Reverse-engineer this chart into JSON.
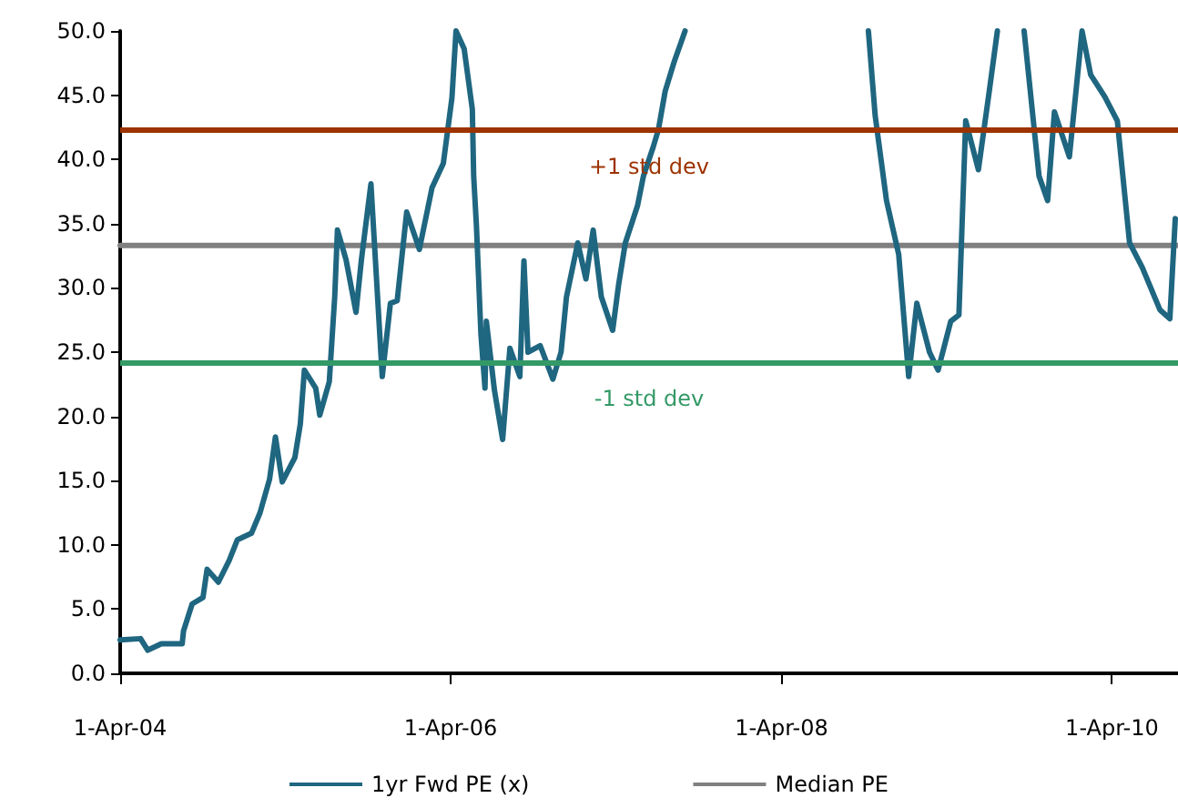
{
  "chart_data": {
    "type": "line",
    "series": [
      {
        "name": "1yr Fwd PE (x)",
        "color": "#1f6680",
        "x": [
          "2004-04-01",
          "2004-05-16",
          "2004-06-01",
          "2004-07-01",
          "2004-08-16",
          "2004-08-19",
          "2004-09-07",
          "2004-10-01",
          "2004-10-10",
          "2004-11-04",
          "2004-11-28",
          "2004-12-16",
          "2005-01-16",
          "2005-02-04",
          "2005-02-25",
          "2005-03-10",
          "2005-03-25",
          "2005-04-22",
          "2005-05-04",
          "2005-05-13",
          "2005-06-07",
          "2005-06-16",
          "2005-07-07",
          "2005-07-13",
          "2005-07-19",
          "2005-07-25",
          "2005-08-13",
          "2005-09-04",
          "2005-09-16",
          "2005-10-07",
          "2005-11-01",
          "2005-11-19",
          "2005-12-04",
          "2005-12-25",
          "2006-01-22",
          "2006-02-19",
          "2006-03-16",
          "2006-04-04",
          "2006-04-13",
          "2006-05-01",
          "2006-05-19",
          "2006-05-22",
          "2006-05-28",
          "2006-06-07",
          "2006-06-16",
          "2006-06-19",
          "2006-07-07",
          "2006-07-25",
          "2006-08-10",
          "2006-09-01",
          "2006-09-10",
          "2006-09-19",
          "2006-10-16",
          "2006-11-13",
          "2006-12-01",
          "2006-12-13",
          "2007-01-07",
          "2007-01-25",
          "2007-02-10",
          "2007-02-28",
          "2007-03-25",
          "2007-04-07",
          "2007-04-22",
          "2007-05-19",
          "2007-06-01",
          "2007-06-22",
          "2007-07-04",
          "2007-07-19",
          "2007-08-07",
          "2007-08-28",
          "2007-09-01",
          "2008-01-01",
          "2008-10-10",
          "2008-10-25",
          "2008-11-19",
          "2008-12-16",
          "2009-01-07",
          "2009-01-25",
          "2009-02-22",
          "2009-03-13",
          "2009-04-10",
          "2009-04-28",
          "2009-05-13",
          "2009-06-10",
          "2009-07-04",
          "2009-07-22",
          "2009-08-01",
          "2009-09-19",
          "2009-10-22",
          "2009-11-10",
          "2009-11-25",
          "2009-12-28",
          "2010-01-25",
          "2010-02-13",
          "2010-03-16",
          "2010-04-13",
          "2010-05-10",
          "2010-06-07",
          "2010-07-16",
          "2010-08-07",
          "2010-08-19"
        ],
        "values": [
          2.6,
          2.7,
          1.8,
          2.3,
          2.3,
          3.3,
          5.4,
          5.9,
          8.1,
          7.1,
          8.8,
          10.4,
          10.9,
          12.5,
          15.1,
          18.4,
          14.9,
          16.8,
          19.4,
          23.6,
          22.2,
          20.1,
          22.7,
          26.0,
          29.3,
          34.5,
          32.2,
          28.1,
          32.2,
          38.1,
          23.1,
          28.8,
          29.0,
          35.9,
          33.0,
          37.8,
          39.7,
          44.8,
          50.0,
          48.6,
          43.9,
          38.7,
          34.9,
          26.4,
          22.2,
          27.4,
          22.0,
          18.2,
          25.3,
          23.1,
          32.1,
          25.0,
          25.5,
          22.9,
          25.0,
          29.3,
          33.5,
          30.7,
          34.5,
          29.3,
          26.7,
          30.2,
          33.5,
          36.4,
          38.7,
          40.9,
          42.3,
          45.3,
          47.5,
          49.6,
          50.0,
          null,
          50.0,
          43.4,
          36.8,
          32.6,
          23.1,
          28.8,
          25.0,
          23.6,
          27.4,
          27.9,
          43.0,
          39.2,
          45.3,
          50.0,
          null,
          50.0,
          38.7,
          36.8,
          43.7,
          40.2,
          50.0,
          46.6,
          44.9,
          43.0,
          33.5,
          31.6,
          28.3,
          27.6,
          35.4
        ]
      },
      {
        "name": "Median PE",
        "color": "#808080",
        "x": [
          "2004-04-01",
          "2010-08-25"
        ],
        "values": [
          33.3,
          33.3
        ]
      }
    ],
    "ref_lines": [
      {
        "axis": "y",
        "value": 42.3,
        "label": "+1 std dev",
        "color": "#9c3300"
      },
      {
        "axis": "y",
        "value": 24.2,
        "label": "-1 std dev",
        "color": "#339966"
      }
    ],
    "xlim": [
      "2004-04-01",
      "2010-08-25"
    ],
    "xticks": [
      {
        "value": "2004-04-01",
        "label": "1-Apr-04"
      },
      {
        "value": "2006-04-01",
        "label": "1-Apr-06"
      },
      {
        "value": "2008-04-01",
        "label": "1-Apr-08"
      },
      {
        "value": "2010-04-01",
        "label": "1-Apr-10"
      }
    ],
    "ylim": [
      0,
      50
    ],
    "yticks": [
      {
        "value": 0,
        "label": "0.0"
      },
      {
        "value": 5,
        "label": "5.0"
      },
      {
        "value": 10,
        "label": "10.0"
      },
      {
        "value": 15,
        "label": "15.0"
      },
      {
        "value": 20,
        "label": "20.0"
      },
      {
        "value": 25,
        "label": "25.0"
      },
      {
        "value": 30,
        "label": "30.0"
      },
      {
        "value": 35,
        "label": "35.0"
      },
      {
        "value": 40,
        "label": "40.0"
      },
      {
        "value": 45,
        "label": "45.0"
      },
      {
        "value": 50,
        "label": "50.0"
      }
    ],
    "grid": false,
    "legend": "bottom",
    "marker": "none",
    "line_style": "solid"
  }
}
